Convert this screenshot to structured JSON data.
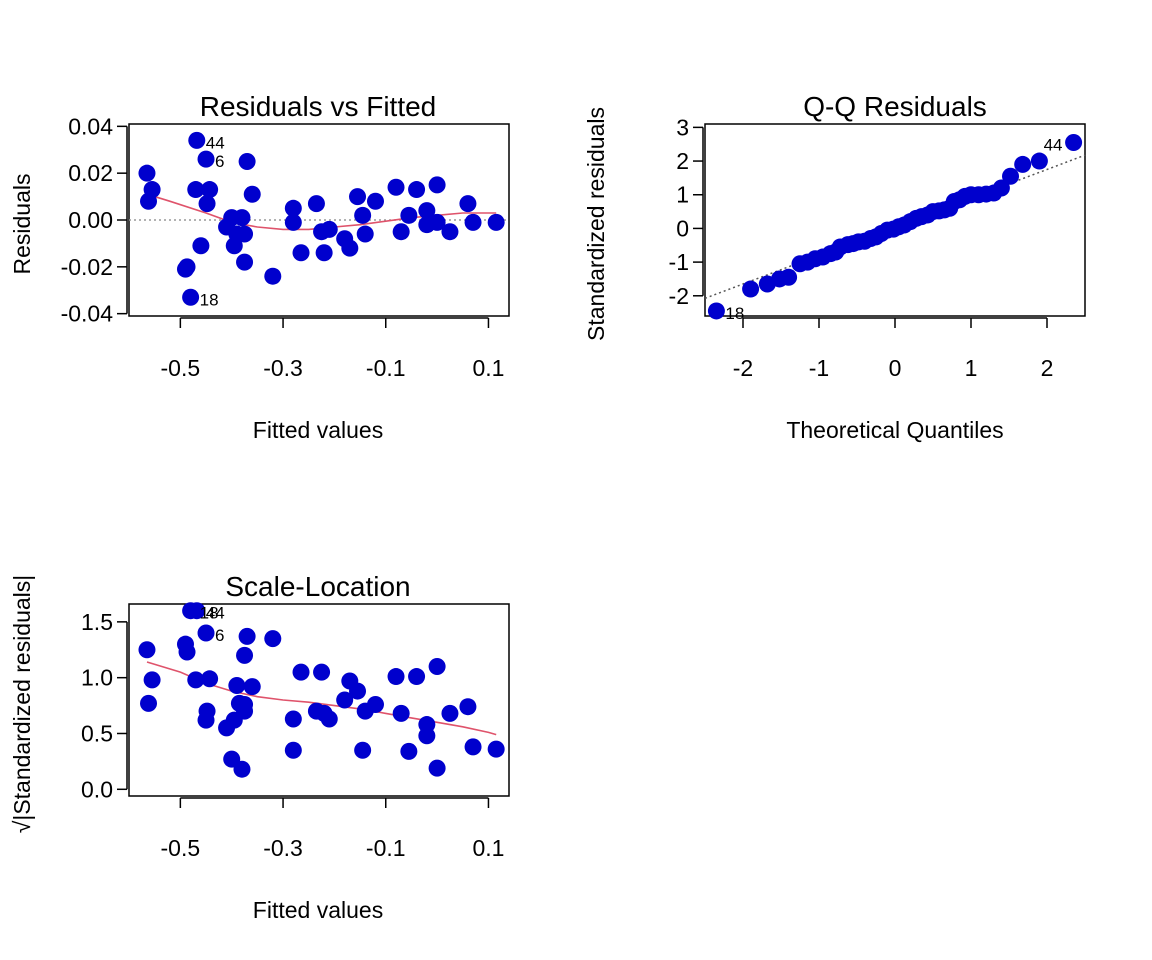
{
  "colors": {
    "points": "#0000CD",
    "smooth": "#DF536B",
    "ref": "#999999",
    "qqline": "#555555"
  },
  "chart_data": [
    {
      "type": "scatter",
      "title": "Residuals vs Fitted",
      "xlabel": "Fitted values",
      "ylabel": "Residuals",
      "xlim": [
        -0.6,
        0.14
      ],
      "ylim": [
        -0.041,
        0.041
      ],
      "xticks": [
        -0.5,
        -0.3,
        -0.1,
        0.1
      ],
      "xtick_labels": [
        "-0.5",
        "-0.3",
        "-0.1",
        "0.1"
      ],
      "yticks": [
        -0.04,
        -0.02,
        0.0,
        0.02,
        0.04
      ],
      "ytick_labels": [
        "-0.04",
        "-0.02",
        "0.00",
        "0.02",
        "0.04"
      ],
      "reference_line_y": 0,
      "points": [
        [
          -0.565,
          0.02
        ],
        [
          -0.555,
          0.013
        ],
        [
          -0.562,
          0.008
        ],
        [
          -0.468,
          0.034
        ],
        [
          -0.45,
          0.026
        ],
        [
          -0.47,
          0.013
        ],
        [
          -0.443,
          0.013
        ],
        [
          -0.448,
          0.007
        ],
        [
          -0.49,
          -0.021
        ],
        [
          -0.487,
          -0.02
        ],
        [
          -0.46,
          -0.011
        ],
        [
          -0.48,
          -0.033
        ],
        [
          -0.41,
          -0.003
        ],
        [
          -0.4,
          0.001
        ],
        [
          -0.38,
          0.001
        ],
        [
          -0.39,
          -0.006
        ],
        [
          -0.395,
          -0.011
        ],
        [
          -0.375,
          -0.006
        ],
        [
          -0.37,
          0.025
        ],
        [
          -0.36,
          0.011
        ],
        [
          -0.375,
          -0.018
        ],
        [
          -0.32,
          -0.024
        ],
        [
          -0.28,
          0.005
        ],
        [
          -0.28,
          -0.001
        ],
        [
          -0.265,
          -0.014
        ],
        [
          -0.235,
          0.007
        ],
        [
          -0.225,
          -0.005
        ],
        [
          -0.22,
          -0.014
        ],
        [
          -0.21,
          -0.004
        ],
        [
          -0.18,
          -0.008
        ],
        [
          -0.17,
          -0.012
        ],
        [
          -0.155,
          0.01
        ],
        [
          -0.145,
          0.002
        ],
        [
          -0.14,
          -0.006
        ],
        [
          -0.12,
          0.008
        ],
        [
          -0.08,
          0.014
        ],
        [
          -0.07,
          -0.005
        ],
        [
          -0.055,
          0.002
        ],
        [
          -0.04,
          0.013
        ],
        [
          -0.02,
          0.004
        ],
        [
          -0.02,
          -0.002
        ],
        [
          0.0,
          0.015
        ],
        [
          0.0,
          -0.001
        ],
        [
          0.025,
          -0.005
        ],
        [
          0.06,
          0.007
        ],
        [
          0.07,
          -0.001
        ],
        [
          0.115,
          -0.001
        ]
      ],
      "smooth": [
        [
          -0.565,
          0.011
        ],
        [
          -0.52,
          0.008
        ],
        [
          -0.45,
          0.003
        ],
        [
          -0.4,
          -0.001
        ],
        [
          -0.35,
          -0.003
        ],
        [
          -0.3,
          -0.004
        ],
        [
          -0.25,
          -0.004
        ],
        [
          -0.2,
          -0.003
        ],
        [
          -0.15,
          -0.002
        ],
        [
          -0.1,
          -0.0005
        ],
        [
          -0.05,
          0.001
        ],
        [
          0.0,
          0.002
        ],
        [
          0.05,
          0.003
        ],
        [
          0.1,
          0.003
        ],
        [
          0.115,
          0.003
        ]
      ],
      "labels": [
        {
          "text": "44",
          "x": -0.468,
          "y": 0.034
        },
        {
          "text": "6",
          "x": -0.45,
          "y": 0.026
        },
        {
          "text": "18",
          "x": -0.48,
          "y": -0.033
        }
      ]
    },
    {
      "type": "scatter",
      "title": "Q-Q Residuals",
      "xlabel": "Theoretical Quantiles",
      "ylabel": "Standardized residuals",
      "xlim": [
        -2.5,
        2.5
      ],
      "ylim": [
        -2.6,
        3.1
      ],
      "xticks": [
        -2,
        -1,
        0,
        1,
        2
      ],
      "xtick_labels": [
        "-2",
        "-1",
        "0",
        "1",
        "2"
      ],
      "yticks": [
        -2,
        -1,
        0,
        1,
        2,
        3
      ],
      "ytick_labels": [
        "-2",
        "-1",
        "0",
        "1",
        "2",
        "3"
      ],
      "reference_line": {
        "intercept": 0.05,
        "slope": 0.85
      },
      "points": [
        [
          -2.35,
          -2.45
        ],
        [
          -1.9,
          -1.8
        ],
        [
          -1.68,
          -1.65
        ],
        [
          -1.52,
          -1.5
        ],
        [
          -1.4,
          -1.45
        ],
        [
          -1.25,
          -1.05
        ],
        [
          -1.15,
          -1.0
        ],
        [
          -1.05,
          -0.9
        ],
        [
          -0.95,
          -0.85
        ],
        [
          -0.85,
          -0.75
        ],
        [
          -0.78,
          -0.7
        ],
        [
          -0.72,
          -0.55
        ],
        [
          -0.62,
          -0.48
        ],
        [
          -0.55,
          -0.45
        ],
        [
          -0.48,
          -0.4
        ],
        [
          -0.4,
          -0.38
        ],
        [
          -0.32,
          -0.3
        ],
        [
          -0.25,
          -0.25
        ],
        [
          -0.18,
          -0.15
        ],
        [
          -0.1,
          -0.05
        ],
        [
          -0.02,
          -0.02
        ],
        [
          0.05,
          0.05
        ],
        [
          0.12,
          0.1
        ],
        [
          0.2,
          0.2
        ],
        [
          0.28,
          0.3
        ],
        [
          0.35,
          0.35
        ],
        [
          0.43,
          0.4
        ],
        [
          0.5,
          0.5
        ],
        [
          0.58,
          0.52
        ],
        [
          0.65,
          0.55
        ],
        [
          0.72,
          0.6
        ],
        [
          0.78,
          0.8
        ],
        [
          0.85,
          0.85
        ],
        [
          0.92,
          0.95
        ],
        [
          1.0,
          1.0
        ],
        [
          1.1,
          1.0
        ],
        [
          1.2,
          1.02
        ],
        [
          1.3,
          1.05
        ],
        [
          1.4,
          1.2
        ],
        [
          1.52,
          1.55
        ],
        [
          1.68,
          1.9
        ],
        [
          1.9,
          2.0
        ],
        [
          2.35,
          2.55
        ]
      ],
      "labels": [
        {
          "text": "44",
          "x": 2.35,
          "y": 2.55
        },
        {
          "text": "18",
          "x": -2.35,
          "y": -2.45
        }
      ]
    },
    {
      "type": "scatter",
      "title": "Scale-Location",
      "xlabel": "Fitted values",
      "ylabel": "√|Standardized residuals|",
      "xlim": [
        -0.6,
        0.14
      ],
      "ylim": [
        -0.06,
        1.66
      ],
      "xticks": [
        -0.5,
        -0.3,
        -0.1,
        0.1
      ],
      "xtick_labels": [
        "-0.5",
        "-0.3",
        "-0.1",
        "0.1"
      ],
      "yticks": [
        0.0,
        0.5,
        1.0,
        1.5
      ],
      "ytick_labels": [
        "0.0",
        "0.5",
        "1.0",
        "1.5"
      ],
      "points": [
        [
          -0.565,
          1.25
        ],
        [
          -0.555,
          0.98
        ],
        [
          -0.562,
          0.77
        ],
        [
          -0.48,
          1.6
        ],
        [
          -0.468,
          1.6
        ],
        [
          -0.45,
          1.4
        ],
        [
          -0.49,
          1.3
        ],
        [
          -0.487,
          1.23
        ],
        [
          -0.47,
          0.98
        ],
        [
          -0.443,
          0.99
        ],
        [
          -0.448,
          0.7
        ],
        [
          -0.45,
          0.62
        ],
        [
          -0.41,
          0.55
        ],
        [
          -0.4,
          0.27
        ],
        [
          -0.395,
          0.62
        ],
        [
          -0.39,
          0.93
        ],
        [
          -0.385,
          0.77
        ],
        [
          -0.38,
          0.18
        ],
        [
          -0.375,
          0.7
        ],
        [
          -0.375,
          0.76
        ],
        [
          -0.37,
          1.37
        ],
        [
          -0.36,
          0.92
        ],
        [
          -0.375,
          1.2
        ],
        [
          -0.32,
          1.35
        ],
        [
          -0.28,
          0.35
        ],
        [
          -0.28,
          0.63
        ],
        [
          -0.265,
          1.05
        ],
        [
          -0.235,
          0.7
        ],
        [
          -0.225,
          1.05
        ],
        [
          -0.22,
          0.68
        ],
        [
          -0.21,
          0.63
        ],
        [
          -0.18,
          0.8
        ],
        [
          -0.17,
          0.97
        ],
        [
          -0.155,
          0.88
        ],
        [
          -0.145,
          0.35
        ],
        [
          -0.14,
          0.7
        ],
        [
          -0.12,
          0.76
        ],
        [
          -0.08,
          1.01
        ],
        [
          -0.07,
          0.68
        ],
        [
          -0.055,
          0.34
        ],
        [
          -0.04,
          1.01
        ],
        [
          -0.02,
          0.58
        ],
        [
          -0.02,
          0.48
        ],
        [
          0.0,
          1.1
        ],
        [
          0.0,
          0.19
        ],
        [
          0.025,
          0.68
        ],
        [
          0.06,
          0.74
        ],
        [
          0.07,
          0.38
        ],
        [
          0.115,
          0.36
        ]
      ],
      "smooth": [
        [
          -0.565,
          1.14
        ],
        [
          -0.5,
          1.05
        ],
        [
          -0.45,
          0.95
        ],
        [
          -0.4,
          0.88
        ],
        [
          -0.35,
          0.83
        ],
        [
          -0.3,
          0.8
        ],
        [
          -0.25,
          0.78
        ],
        [
          -0.2,
          0.75
        ],
        [
          -0.15,
          0.72
        ],
        [
          -0.1,
          0.68
        ],
        [
          -0.05,
          0.64
        ],
        [
          0.0,
          0.6
        ],
        [
          0.05,
          0.56
        ],
        [
          0.1,
          0.51
        ],
        [
          0.115,
          0.49
        ]
      ],
      "labels": [
        {
          "text": "44",
          "x": -0.468,
          "y": 1.6
        },
        {
          "text": "18",
          "x": -0.48,
          "y": 1.6
        },
        {
          "text": "6",
          "x": -0.45,
          "y": 1.4
        }
      ]
    }
  ]
}
